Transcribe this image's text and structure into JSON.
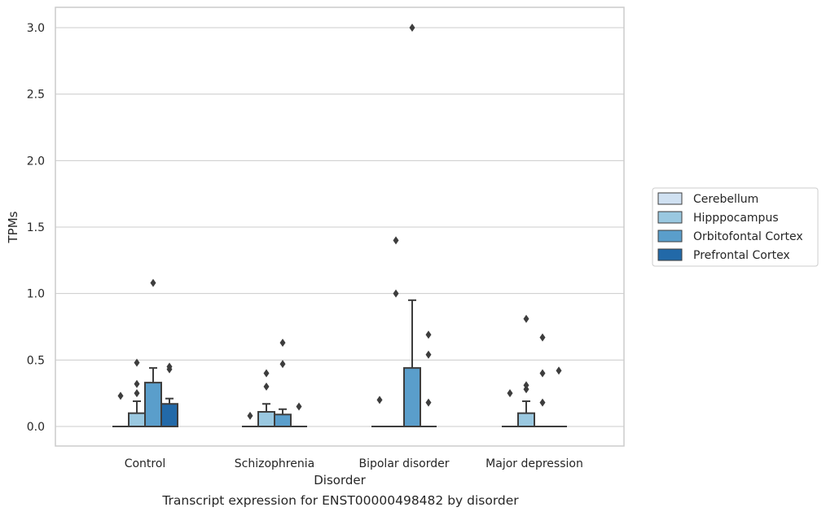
{
  "caption": "Transcript expression for ENST00000498482 by disorder",
  "chart_data": {
    "type": "box",
    "title": "",
    "xlabel": "Disorder",
    "ylabel": "TPMs",
    "ylim": [
      -0.15,
      3.15
    ],
    "yticks": [
      0.0,
      0.5,
      1.0,
      1.5,
      2.0,
      2.5,
      3.0
    ],
    "ytick_labels": [
      "0.0",
      "0.5",
      "1.0",
      "1.5",
      "2.0",
      "2.5",
      "3.0"
    ],
    "categories": [
      "Control",
      "Schizophrenia",
      "Bipolar disorder",
      "Major depression"
    ],
    "grid": "horizontal",
    "legend_position": "right",
    "series": [
      {
        "name": "Cerebellum",
        "color": "#d0e1f2",
        "boxes": [
          {
            "category": "Control",
            "q1": 0.0,
            "median": 0.0,
            "q3": 0.0,
            "whisker_low": 0.0,
            "whisker_high": 0.0,
            "outliers": [
              0.23
            ]
          },
          {
            "category": "Schizophrenia",
            "q1": 0.0,
            "median": 0.0,
            "q3": 0.0,
            "whisker_low": 0.0,
            "whisker_high": 0.0,
            "outliers": [
              0.08
            ]
          },
          {
            "category": "Bipolar disorder",
            "q1": 0.0,
            "median": 0.0,
            "q3": 0.0,
            "whisker_low": 0.0,
            "whisker_high": 0.0,
            "outliers": [
              0.2
            ]
          },
          {
            "category": "Major depression",
            "q1": 0.0,
            "median": 0.0,
            "q3": 0.0,
            "whisker_low": 0.0,
            "whisker_high": 0.0,
            "outliers": [
              0.25
            ]
          }
        ]
      },
      {
        "name": "Hipppocampus",
        "color": "#9ac8e0",
        "boxes": [
          {
            "category": "Control",
            "q1": 0.0,
            "median": 0.0,
            "q3": 0.1,
            "whisker_low": 0.0,
            "whisker_high": 0.19,
            "outliers": [
              0.25,
              0.32,
              0.48
            ]
          },
          {
            "category": "Schizophrenia",
            "q1": 0.0,
            "median": 0.0,
            "q3": 0.11,
            "whisker_low": 0.0,
            "whisker_high": 0.17,
            "outliers": [
              0.3,
              0.4
            ]
          },
          {
            "category": "Bipolar disorder",
            "q1": 0.0,
            "median": 0.0,
            "q3": 0.0,
            "whisker_low": 0.0,
            "whisker_high": 0.0,
            "outliers": [
              1.0,
              1.4
            ]
          },
          {
            "category": "Major depression",
            "q1": 0.0,
            "median": 0.0,
            "q3": 0.1,
            "whisker_low": 0.0,
            "whisker_high": 0.19,
            "outliers": [
              0.28,
              0.31,
              0.81
            ]
          }
        ]
      },
      {
        "name": "Orbitofontal Cortex",
        "color": "#5a9ecb",
        "boxes": [
          {
            "category": "Control",
            "q1": 0.0,
            "median": 0.0,
            "q3": 0.33,
            "whisker_low": 0.0,
            "whisker_high": 0.44,
            "outliers": [
              1.08
            ]
          },
          {
            "category": "Schizophrenia",
            "q1": 0.0,
            "median": 0.0,
            "q3": 0.09,
            "whisker_low": 0.0,
            "whisker_high": 0.13,
            "outliers": [
              0.47,
              0.63
            ]
          },
          {
            "category": "Bipolar disorder",
            "q1": 0.0,
            "median": 0.0,
            "q3": 0.44,
            "whisker_low": 0.0,
            "whisker_high": 0.95,
            "outliers": [
              3.0
            ]
          },
          {
            "category": "Major depression",
            "q1": 0.0,
            "median": 0.0,
            "q3": 0.0,
            "whisker_low": 0.0,
            "whisker_high": 0.0,
            "outliers": [
              0.18,
              0.4,
              0.67
            ]
          }
        ]
      },
      {
        "name": "Prefrontal Cortex",
        "color": "#2269a8",
        "boxes": [
          {
            "category": "Control",
            "q1": 0.0,
            "median": 0.0,
            "q3": 0.17,
            "whisker_low": 0.0,
            "whisker_high": 0.21,
            "outliers": [
              0.43,
              0.45
            ]
          },
          {
            "category": "Schizophrenia",
            "q1": 0.0,
            "median": 0.0,
            "q3": 0.0,
            "whisker_low": 0.0,
            "whisker_high": 0.0,
            "outliers": [
              0.15
            ]
          },
          {
            "category": "Bipolar disorder",
            "q1": 0.0,
            "median": 0.0,
            "q3": 0.0,
            "whisker_low": 0.0,
            "whisker_high": 0.0,
            "outliers": [
              0.18,
              0.54,
              0.69
            ]
          },
          {
            "category": "Major depression",
            "q1": 0.0,
            "median": 0.0,
            "q3": 0.0,
            "whisker_low": 0.0,
            "whisker_high": 0.0,
            "outliers": [
              0.42
            ]
          }
        ]
      }
    ]
  }
}
